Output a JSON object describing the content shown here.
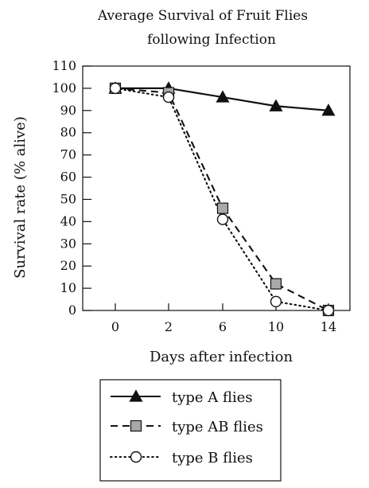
{
  "chart_data": {
    "type": "line",
    "title_lines": [
      "Average Survival of Fruit Flies",
      "following Infection"
    ],
    "xlabel": "Days after infection",
    "ylabel": "Survival rate (% alive)",
    "categories": [
      "0",
      "2",
      "6",
      "10",
      "14"
    ],
    "ylim": [
      0,
      110
    ],
    "yticks": [
      0,
      10,
      20,
      30,
      40,
      50,
      60,
      70,
      80,
      90,
      100,
      110
    ],
    "grid": false,
    "legend_position": "bottom",
    "series": [
      {
        "name": "type A flies",
        "values": [
          100,
          100,
          96,
          92,
          90
        ],
        "line_style": "solid",
        "marker": "filled-triangle",
        "color": "#111111",
        "marker_fill": "#111111"
      },
      {
        "name": "type AB flies",
        "values": [
          100,
          98,
          46,
          12,
          0
        ],
        "line_style": "dashed",
        "marker": "square",
        "color": "#111111",
        "marker_fill": "#a9a9a9"
      },
      {
        "name": "type B flies",
        "values": [
          100,
          96,
          41,
          4,
          0
        ],
        "line_style": "dotted",
        "marker": "open-circle",
        "color": "#111111",
        "marker_fill": "#ffffff"
      }
    ]
  }
}
